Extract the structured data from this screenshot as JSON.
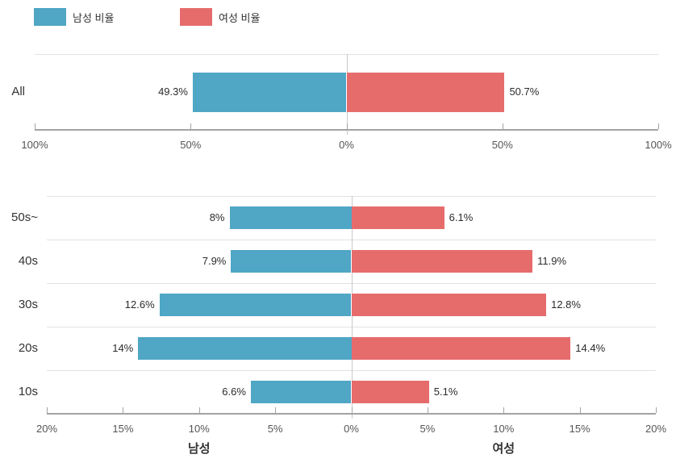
{
  "legend": {
    "items": [
      {
        "label": "남성 비율",
        "color": "#4FA6C5",
        "icon": "legend-swatch-male"
      },
      {
        "label": "여성 비율",
        "color": "#E66C6C",
        "icon": "legend-swatch-female"
      }
    ]
  },
  "chart_data": [
    {
      "type": "bar",
      "orientation": "horizontal-diverging",
      "title": "",
      "categories": [
        "All"
      ],
      "series": [
        {
          "name": "남성 비율",
          "side": "left",
          "color": "#4FA6C5",
          "values": [
            49.3
          ],
          "labels": [
            "49.3%"
          ]
        },
        {
          "name": "여성 비율",
          "side": "right",
          "color": "#E66C6C",
          "values": [
            50.7
          ],
          "labels": [
            "50.7%"
          ]
        }
      ],
      "axis": {
        "max": 100,
        "tick_labels": [
          "100%",
          "50%",
          "0%",
          "50%",
          "100%"
        ]
      },
      "xlabel_left": "",
      "xlabel_right": "",
      "grid": true,
      "legend_position": "top"
    },
    {
      "type": "bar",
      "orientation": "horizontal-diverging",
      "title": "",
      "categories": [
        "50s~",
        "40s",
        "30s",
        "20s",
        "10s"
      ],
      "series": [
        {
          "name": "남성 비율",
          "side": "left",
          "color": "#4FA6C5",
          "values": [
            8,
            7.9,
            12.6,
            14,
            6.6
          ],
          "labels": [
            "8%",
            "7.9%",
            "12.6%",
            "14%",
            "6.6%"
          ]
        },
        {
          "name": "여성 비율",
          "side": "right",
          "color": "#E66C6C",
          "values": [
            6.1,
            11.9,
            12.8,
            14.4,
            5.1
          ],
          "labels": [
            "6.1%",
            "11.9%",
            "12.8%",
            "14.4%",
            "5.1%"
          ]
        }
      ],
      "axis": {
        "max": 20,
        "tick_labels": [
          "20%",
          "15%",
          "10%",
          "5%",
          "0%",
          "5%",
          "10%",
          "15%",
          "20%"
        ]
      },
      "xlabel_left": "남성",
      "xlabel_right": "여성",
      "grid": true,
      "legend_position": "top"
    }
  ]
}
